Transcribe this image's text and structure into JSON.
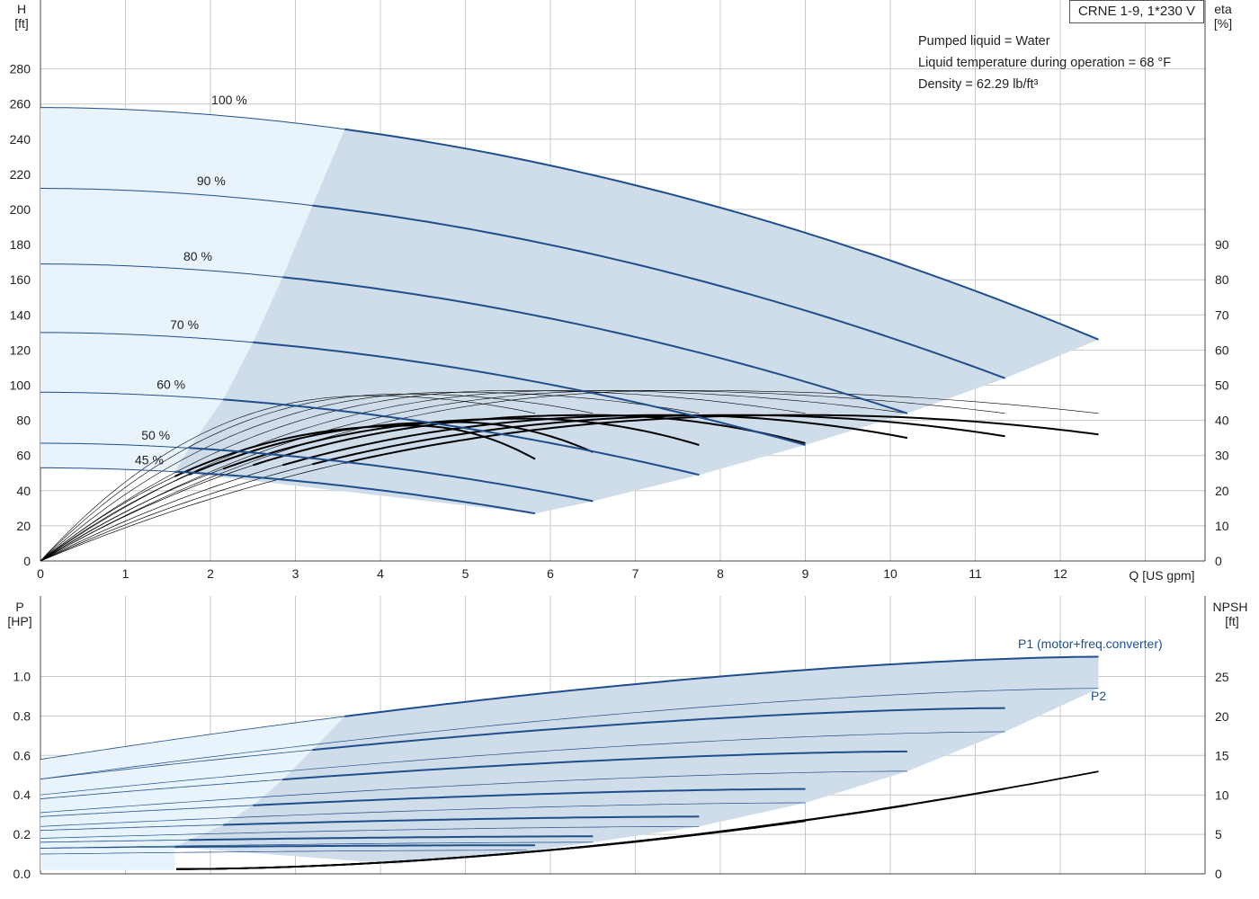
{
  "product_name": "CRNE 1-9, 1*230 V",
  "liquid_info": [
    "Pumped liquid = Water",
    "Liquid temperature during operation = 68 °F",
    "Density = 62.29 lb/ft³"
  ],
  "colors": {
    "curve_blue": "#1f4e8c",
    "region_light": "#e8f3fc",
    "region_dark": "#cfdce9",
    "grid": "#c8c8c8",
    "efficiency": "#000000"
  },
  "chart_data": [
    {
      "type": "line",
      "title": "",
      "ylabel_left": "H",
      "ylabel_left_unit": "[ft]",
      "ylabel_right": "eta",
      "ylabel_right_unit": "[%]",
      "xlabel": "Q [US gpm]",
      "xlim": [
        0,
        13.7
      ],
      "ylim": [
        0,
        290
      ],
      "xticks": [
        "0",
        "1",
        "2",
        "3",
        "4",
        "5",
        "6",
        "7",
        "8",
        "9",
        "10",
        "11",
        "12"
      ],
      "yticks_left": [
        "0",
        "20",
        "40",
        "60",
        "80",
        "100",
        "120",
        "140",
        "160",
        "180",
        "200",
        "220",
        "240",
        "260",
        "280"
      ],
      "yticks_right": [
        "0",
        "10",
        "20",
        "30",
        "40",
        "50",
        "60",
        "70",
        "80",
        "90"
      ],
      "right_axis_max": 90,
      "grid": true,
      "head_curves": [
        {
          "label": "100 %",
          "h0": 258,
          "q_end": 12.45,
          "h_end": 126,
          "q_op": 3.58
        },
        {
          "label": "90 %",
          "h0": 212,
          "q_end": 11.35,
          "h_end": 104,
          "q_op": 3.2
        },
        {
          "label": "80 %",
          "h0": 169,
          "q_end": 10.2,
          "h_end": 84,
          "q_op": 2.85
        },
        {
          "label": "70 %",
          "h0": 130,
          "q_end": 9.0,
          "h_end": 66,
          "q_op": 2.5
        },
        {
          "label": "60 %",
          "h0": 96,
          "q_end": 7.75,
          "h_end": 49,
          "q_op": 2.15
        },
        {
          "label": "50 %",
          "h0": 67,
          "q_end": 6.5,
          "h_end": 34,
          "q_op": 1.75
        },
        {
          "label": "45 %",
          "h0": 53,
          "q_end": 5.82,
          "h_end": 27,
          "q_op": 1.58
        }
      ],
      "efficiency_curves": [
        {
          "q_end": 12.45,
          "eta_max": 41.5,
          "eta_end": 36,
          "q_bep": 9.0,
          "q_op": 3.58
        },
        {
          "q_end": 11.35,
          "eta_max": 41.5,
          "eta_end": 35.5,
          "q_bep": 8.2,
          "q_op": 3.2
        },
        {
          "q_end": 10.2,
          "eta_max": 41.5,
          "eta_end": 35,
          "q_bep": 7.4,
          "q_op": 2.85
        },
        {
          "q_end": 9.0,
          "eta_max": 41.5,
          "eta_end": 33.5,
          "q_bep": 6.5,
          "q_op": 2.5
        },
        {
          "q_end": 7.75,
          "eta_max": 40.5,
          "eta_end": 33,
          "q_bep": 5.7,
          "q_op": 2.15
        },
        {
          "q_end": 6.5,
          "eta_max": 39.5,
          "eta_end": 31,
          "q_bep": 4.9,
          "q_op": 1.75
        },
        {
          "q_end": 5.82,
          "eta_max": 38.5,
          "eta_end": 29,
          "q_bep": 4.4,
          "q_op": 1.58
        }
      ],
      "efficiency_thin_curves": [
        {
          "q_end": 12.45,
          "eta_max": 48.5,
          "eta_end": 42,
          "q_bep": 7.6
        },
        {
          "q_end": 11.35,
          "eta_max": 48.5,
          "eta_end": 42,
          "q_bep": 7.0
        },
        {
          "q_end": 10.2,
          "eta_max": 48.5,
          "eta_end": 42,
          "q_bep": 6.3
        },
        {
          "q_end": 9.0,
          "eta_max": 48.5,
          "eta_end": 42,
          "q_bep": 5.6
        },
        {
          "q_end": 7.75,
          "eta_max": 48,
          "eta_end": 42,
          "q_bep": 4.9
        },
        {
          "q_end": 6.5,
          "eta_max": 47.5,
          "eta_end": 42,
          "q_bep": 4.3
        },
        {
          "q_end": 5.82,
          "eta_max": 47,
          "eta_end": 42,
          "q_bep": 3.9
        }
      ]
    },
    {
      "type": "line",
      "title": "",
      "ylabel_left": "P",
      "ylabel_left_unit": "[HP]",
      "ylabel_right": "NPSH",
      "ylabel_right_unit": "[ft]",
      "xlim": [
        0,
        13.7
      ],
      "ylim": [
        0,
        1.27
      ],
      "yticks_left": [
        "0.0",
        "0.2",
        "0.4",
        "0.6",
        "0.8",
        "1.0"
      ],
      "yticks_right": [
        "0",
        "5",
        "10",
        "15",
        "20",
        "25"
      ],
      "right_axis_max": 25,
      "grid": true,
      "series_labels": [
        "P1 (motor+freq.converter)",
        "P2"
      ],
      "p1_curves": [
        {
          "p0": 0.58,
          "p_end": 1.1,
          "q_end": 12.45,
          "q_op": 3.58
        },
        {
          "p0": 0.48,
          "p_end": 0.84,
          "q_end": 11.35,
          "q_op": 3.2
        },
        {
          "p0": 0.38,
          "p_end": 0.62,
          "q_end": 10.2,
          "q_op": 2.85
        },
        {
          "p0": 0.29,
          "p_end": 0.43,
          "q_end": 9.0,
          "q_op": 2.5
        },
        {
          "p0": 0.22,
          "p_end": 0.29,
          "q_end": 7.75,
          "q_op": 2.15
        },
        {
          "p0": 0.16,
          "p_end": 0.19,
          "q_end": 6.5,
          "q_op": 1.75
        },
        {
          "p0": 0.13,
          "p_end": 0.145,
          "q_end": 5.82,
          "q_op": 1.58
        }
      ],
      "p2_curves": [
        {
          "p0": 0.48,
          "p_end": 0.94,
          "q_end": 12.45
        },
        {
          "p0": 0.4,
          "p_end": 0.72,
          "q_end": 11.35
        },
        {
          "p0": 0.31,
          "p_end": 0.52,
          "q_end": 10.2
        },
        {
          "p0": 0.24,
          "p_end": 0.36,
          "q_end": 9.0
        },
        {
          "p0": 0.18,
          "p_end": 0.24,
          "q_end": 7.75
        },
        {
          "p0": 0.13,
          "p_end": 0.16,
          "q_end": 6.5
        },
        {
          "p0": 0.1,
          "p_end": 0.12,
          "q_end": 5.82
        }
      ],
      "npsh_curves": [
        {
          "q_start": 1.6,
          "n_start": 0.6,
          "q_end": 12.45,
          "n_end": 13
        },
        {
          "q_start": 1.6,
          "n_start": 0.6,
          "q_end": 11.35,
          "n_end": 10.8
        },
        {
          "q_start": 1.6,
          "n_start": 0.6,
          "q_end": 10.2,
          "n_end": 8.7
        },
        {
          "q_start": 1.6,
          "n_start": 0.6,
          "q_end": 9.0,
          "n_end": 6.7
        },
        {
          "q_start": 1.6,
          "n_start": 0.6,
          "q_end": 7.75,
          "n_end": 5.0
        }
      ]
    }
  ]
}
